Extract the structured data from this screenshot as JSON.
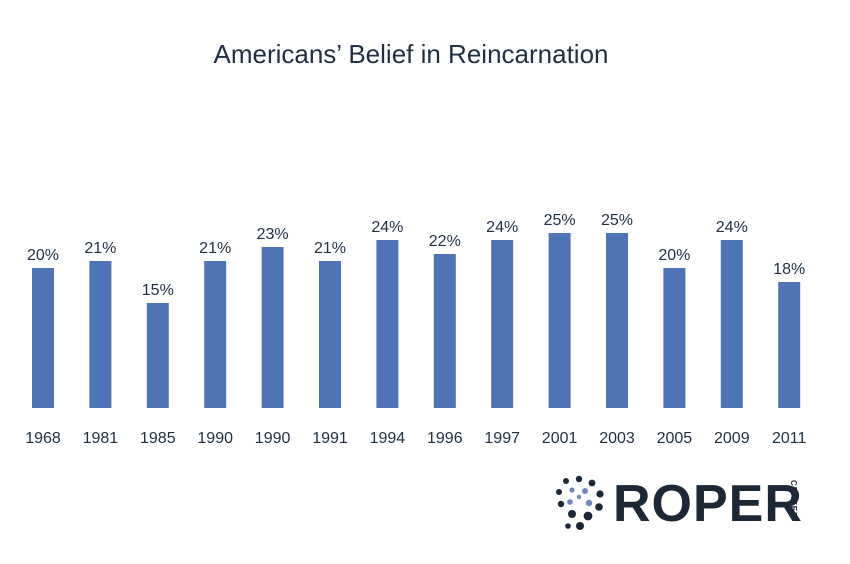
{
  "chart_data": {
    "type": "bar",
    "title": "Americans’ Belief in Reincarnation",
    "categories": [
      "1968",
      "1981",
      "1985",
      "1990",
      "1990",
      "1991",
      "1994",
      "1996",
      "1997",
      "2001",
      "2003",
      "2005",
      "2009",
      "2011"
    ],
    "values": [
      20,
      21,
      15,
      21,
      23,
      21,
      24,
      22,
      24,
      25,
      25,
      20,
      24,
      18
    ],
    "data_labels": [
      "20%",
      "21%",
      "15%",
      "21%",
      "23%",
      "21%",
      "24%",
      "22%",
      "24%",
      "25%",
      "25%",
      "20%",
      "24%",
      "18%"
    ],
    "xlabel": "",
    "ylabel": "",
    "ylim": [
      0,
      25
    ],
    "grid": false,
    "legend": "none",
    "colors": {
      "bar": "#4f74b6",
      "text": "#1f2f44"
    }
  },
  "logo": {
    "word": "ROPER",
    "sub": "CENTER",
    "color": "#1c2836"
  }
}
